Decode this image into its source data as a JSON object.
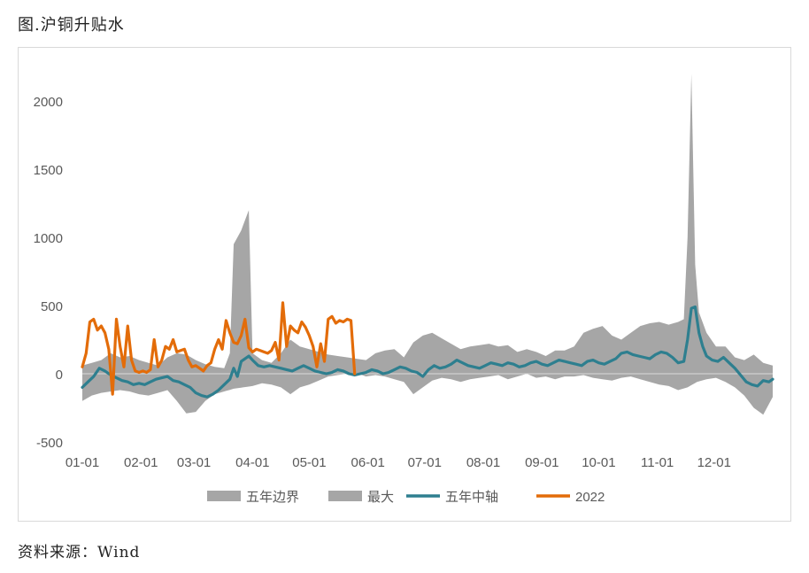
{
  "figure_title": "图.沪铜升贴水",
  "source_note": "资料来源：Wind",
  "chart_data": {
    "type": "area",
    "xlabel": "",
    "ylabel": "",
    "ylim": [
      -500,
      2000
    ],
    "yticks": [
      -500,
      0,
      500,
      1000,
      1500,
      2000
    ],
    "xlim": [
      0,
      365
    ],
    "categories": [
      "01-01",
      "02-01",
      "03-01",
      "04-01",
      "05-01",
      "06-01",
      "07-01",
      "08-01",
      "09-01",
      "10-01",
      "11-01",
      "12-01"
    ],
    "category_days": [
      0,
      31,
      59,
      90,
      120,
      151,
      181,
      212,
      243,
      273,
      304,
      334
    ],
    "grid": false,
    "legend_position": "bottom",
    "colors": {
      "band": "#a6a6a6",
      "median": "#2e7f8f",
      "y2022": "#e36c09",
      "zero": "#d9d9d9"
    },
    "series": [
      {
        "name": "五年边界",
        "kind": "band_low",
        "x": [
          0,
          5,
          10,
          15,
          20,
          25,
          30,
          35,
          40,
          45,
          50,
          55,
          60,
          65,
          70,
          75,
          80,
          85,
          90,
          95,
          100,
          105,
          110,
          115,
          120,
          125,
          130,
          135,
          140,
          145,
          150,
          155,
          160,
          165,
          170,
          175,
          180,
          185,
          190,
          195,
          200,
          205,
          210,
          215,
          220,
          225,
          230,
          235,
          240,
          245,
          250,
          255,
          260,
          265,
          270,
          275,
          280,
          285,
          290,
          295,
          300,
          305,
          310,
          315,
          320,
          325,
          330,
          335,
          340,
          345,
          350,
          355,
          360,
          365
        ],
        "values": [
          -200,
          -160,
          -140,
          -130,
          -120,
          -130,
          -150,
          -160,
          -140,
          -120,
          -200,
          -290,
          -280,
          -200,
          -150,
          -130,
          -110,
          -100,
          -90,
          -70,
          -80,
          -100,
          -150,
          -100,
          -80,
          -50,
          -20,
          -10,
          0,
          5,
          -20,
          -10,
          -20,
          -40,
          -60,
          -150,
          -100,
          -50,
          -30,
          -40,
          -60,
          -40,
          -30,
          -20,
          -10,
          -40,
          -20,
          0,
          -30,
          -20,
          -40,
          -20,
          -20,
          -10,
          -30,
          -40,
          -50,
          -30,
          -20,
          -40,
          -60,
          -80,
          -90,
          -120,
          -100,
          -60,
          -40,
          -30,
          -60,
          -100,
          -160,
          -250,
          -300,
          -170
        ]
      },
      {
        "name": "最大",
        "kind": "band_high",
        "x": [
          0,
          5,
          10,
          15,
          20,
          25,
          30,
          35,
          40,
          45,
          50,
          55,
          60,
          65,
          70,
          75,
          78,
          80,
          84,
          88,
          90,
          95,
          100,
          105,
          110,
          115,
          120,
          125,
          130,
          135,
          140,
          145,
          150,
          155,
          160,
          165,
          170,
          175,
          180,
          185,
          190,
          195,
          200,
          205,
          210,
          215,
          220,
          225,
          230,
          235,
          240,
          245,
          250,
          255,
          260,
          265,
          270,
          275,
          280,
          285,
          290,
          295,
          300,
          305,
          310,
          315,
          318,
          320,
          322,
          324,
          326,
          330,
          335,
          340,
          345,
          350,
          355,
          360,
          365
        ],
        "values": [
          60,
          80,
          100,
          150,
          120,
          130,
          100,
          80,
          60,
          120,
          150,
          140,
          100,
          70,
          50,
          40,
          150,
          950,
          1050,
          1200,
          150,
          100,
          80,
          150,
          250,
          200,
          180,
          160,
          140,
          130,
          120,
          110,
          100,
          150,
          170,
          180,
          120,
          230,
          280,
          300,
          260,
          220,
          180,
          200,
          210,
          220,
          200,
          210,
          160,
          180,
          160,
          130,
          170,
          170,
          200,
          300,
          330,
          350,
          280,
          250,
          300,
          350,
          370,
          380,
          360,
          380,
          400,
          1000,
          2200,
          800,
          450,
          300,
          200,
          200,
          120,
          100,
          140,
          80,
          60
        ]
      },
      {
        "name": "五年中轴",
        "kind": "line",
        "x": [
          0,
          3,
          6,
          9,
          12,
          15,
          18,
          21,
          24,
          27,
          30,
          33,
          36,
          39,
          42,
          45,
          48,
          51,
          54,
          57,
          60,
          63,
          66,
          69,
          72,
          75,
          78,
          80,
          82,
          84,
          86,
          88,
          90,
          93,
          96,
          99,
          102,
          105,
          108,
          111,
          114,
          117,
          120,
          123,
          126,
          129,
          132,
          135,
          138,
          141,
          144,
          147,
          150,
          153,
          156,
          159,
          162,
          165,
          168,
          171,
          174,
          177,
          180,
          183,
          186,
          189,
          192,
          195,
          198,
          201,
          204,
          207,
          210,
          213,
          216,
          219,
          222,
          225,
          228,
          231,
          234,
          237,
          240,
          243,
          246,
          249,
          252,
          255,
          258,
          261,
          264,
          267,
          270,
          273,
          276,
          279,
          282,
          285,
          288,
          291,
          294,
          297,
          300,
          303,
          306,
          309,
          312,
          315,
          318,
          320,
          322,
          324,
          326,
          328,
          330,
          333,
          336,
          339,
          342,
          345,
          348,
          351,
          354,
          357,
          360,
          363,
          365
        ],
        "values": [
          -100,
          -60,
          -20,
          40,
          20,
          -10,
          -30,
          -50,
          -60,
          -80,
          -70,
          -80,
          -60,
          -40,
          -30,
          -20,
          -50,
          -60,
          -80,
          -100,
          -140,
          -160,
          -170,
          -150,
          -120,
          -80,
          -40,
          40,
          -20,
          90,
          110,
          130,
          100,
          60,
          50,
          60,
          50,
          40,
          30,
          20,
          40,
          60,
          40,
          20,
          10,
          0,
          10,
          30,
          20,
          0,
          -10,
          0,
          10,
          30,
          20,
          0,
          10,
          30,
          50,
          40,
          20,
          10,
          -20,
          30,
          60,
          40,
          50,
          70,
          100,
          80,
          60,
          50,
          40,
          60,
          80,
          70,
          60,
          80,
          70,
          50,
          60,
          80,
          90,
          70,
          60,
          80,
          100,
          90,
          80,
          70,
          60,
          90,
          100,
          80,
          70,
          90,
          110,
          150,
          160,
          140,
          130,
          120,
          110,
          140,
          160,
          150,
          120,
          80,
          90,
          250,
          480,
          490,
          300,
          200,
          130,
          100,
          90,
          120,
          80,
          40,
          -10,
          -60,
          -80,
          -90,
          -50,
          -60,
          -40
        ]
      },
      {
        "name": "2022",
        "kind": "line",
        "x": [
          0,
          2,
          4,
          6,
          8,
          10,
          12,
          14,
          16,
          18,
          20,
          22,
          24,
          26,
          28,
          30,
          32,
          34,
          36,
          38,
          40,
          42,
          44,
          46,
          48,
          50,
          52,
          54,
          56,
          58,
          60,
          62,
          64,
          66,
          68,
          70,
          72,
          74,
          76,
          78,
          80,
          82,
          84,
          86,
          88,
          90,
          92,
          94,
          96,
          98,
          100,
          102,
          104,
          106,
          108,
          110,
          112,
          114,
          116,
          118,
          120,
          122,
          124,
          126,
          128,
          130,
          132,
          134,
          136,
          138,
          140,
          142,
          144,
          146,
          148,
          150
        ],
        "values": [
          50,
          150,
          380,
          400,
          320,
          350,
          300,
          180,
          -150,
          400,
          200,
          50,
          350,
          100,
          20,
          10,
          20,
          10,
          30,
          250,
          50,
          100,
          200,
          180,
          250,
          160,
          170,
          180,
          100,
          50,
          60,
          40,
          20,
          60,
          80,
          180,
          250,
          180,
          390,
          300,
          230,
          220,
          280,
          400,
          190,
          160,
          180,
          170,
          160,
          150,
          170,
          230,
          100,
          520,
          200,
          350,
          320,
          300,
          380,
          340,
          280,
          200,
          50,
          220,
          90,
          400,
          420,
          370,
          390,
          380,
          400,
          390,
          0,
          0,
          0,
          0
        ]
      }
    ]
  }
}
